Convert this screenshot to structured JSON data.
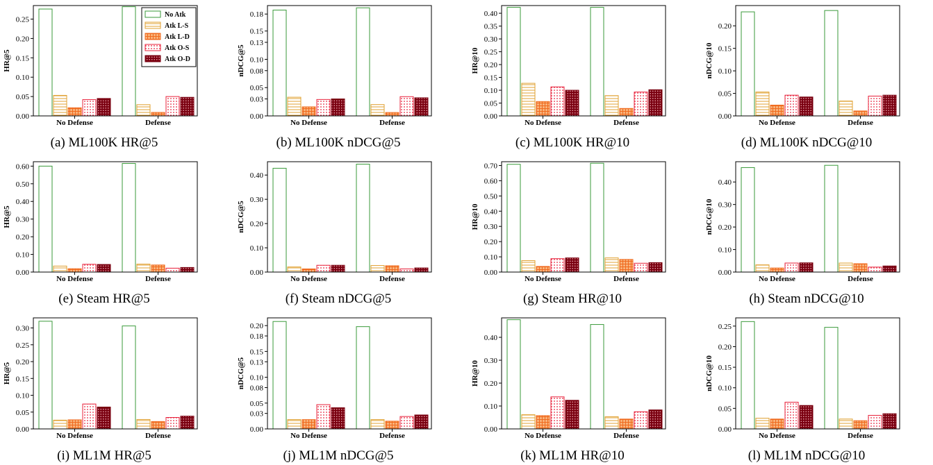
{
  "legend": {
    "entries": [
      "No Atk",
      "Atk L-S",
      "Atk L-D",
      "Atk O-S",
      "Atk O-D"
    ],
    "placement": "upper-right of panel (a)"
  },
  "series_style": [
    {
      "name": "No Atk",
      "edge": "#3a9a3a",
      "fill": "#ffffff",
      "pattern": "none"
    },
    {
      "name": "Atk L-S",
      "edge": "#e0a030",
      "fill": "#ffffff",
      "pattern": "horizontal-lines"
    },
    {
      "name": "Atk L-D",
      "edge": "#f06a1e",
      "fill": "#f8b27a",
      "pattern": "grid"
    },
    {
      "name": "Atk O-S",
      "edge": "#e8203a",
      "fill": "#ffe0e0",
      "pattern": "dots"
    },
    {
      "name": "Atk O-D",
      "edge": "#7a0010",
      "fill": "#a01a2a",
      "pattern": "dense-dots"
    }
  ],
  "chart_data": [
    {
      "type": "bar",
      "caption": "(a) ML100K HR@5",
      "ylabel": "HR@5",
      "categories": [
        "No Defense",
        "Defense"
      ],
      "ylim": [
        0,
        0.285
      ],
      "yticks": [
        "0.00",
        "0.05",
        "0.10",
        "0.15",
        "0.20",
        "0.25"
      ],
      "series": [
        {
          "name": "No Atk",
          "values": [
            0.276,
            0.282
          ]
        },
        {
          "name": "Atk L-S",
          "values": [
            0.053,
            0.029
          ]
        },
        {
          "name": "Atk L-D",
          "values": [
            0.021,
            0.009
          ]
        },
        {
          "name": "Atk O-S",
          "values": [
            0.042,
            0.05
          ]
        },
        {
          "name": "Atk O-D",
          "values": [
            0.045,
            0.048
          ]
        }
      ]
    },
    {
      "type": "bar",
      "caption": "(b) ML100K nDCG@5",
      "ylabel": "nDCG@5",
      "categories": [
        "No Defense",
        "Defense"
      ],
      "ylim": [
        0,
        0.195
      ],
      "yticks": [
        "0.00",
        "0.03",
        "0.05",
        "0.08",
        "0.10",
        "0.13",
        "0.15",
        "0.18"
      ],
      "series": [
        {
          "name": "No Atk",
          "values": [
            0.187,
            0.191
          ]
        },
        {
          "name": "Atk L-S",
          "values": [
            0.033,
            0.02
          ]
        },
        {
          "name": "Atk L-D",
          "values": [
            0.016,
            0.006
          ]
        },
        {
          "name": "Atk O-S",
          "values": [
            0.029,
            0.034
          ]
        },
        {
          "name": "Atk O-D",
          "values": [
            0.03,
            0.032
          ]
        }
      ]
    },
    {
      "type": "bar",
      "caption": "(c) ML100K HR@10",
      "ylabel": "HR@10",
      "categories": [
        "No Defense",
        "Defense"
      ],
      "ylim": [
        0,
        0.43
      ],
      "yticks": [
        "0.00",
        "0.05",
        "0.10",
        "0.15",
        "0.20",
        "0.25",
        "0.30",
        "0.35",
        "0.40"
      ],
      "series": [
        {
          "name": "No Atk",
          "values": [
            0.423,
            0.423
          ]
        },
        {
          "name": "Atk L-S",
          "values": [
            0.127,
            0.079
          ]
        },
        {
          "name": "Atk L-D",
          "values": [
            0.056,
            0.029
          ]
        },
        {
          "name": "Atk O-S",
          "values": [
            0.113,
            0.093
          ]
        },
        {
          "name": "Atk O-D",
          "values": [
            0.1,
            0.102
          ]
        }
      ]
    },
    {
      "type": "bar",
      "caption": "(d) ML100K nDCG@10",
      "ylabel": "nDCG@10",
      "categories": [
        "No Defense",
        "Defense"
      ],
      "ylim": [
        0,
        0.245
      ],
      "yticks": [
        "0.00",
        "0.05",
        "0.10",
        "0.15",
        "0.20"
      ],
      "series": [
        {
          "name": "No Atk",
          "values": [
            0.231,
            0.234
          ]
        },
        {
          "name": "Atk L-S",
          "values": [
            0.053,
            0.033
          ]
        },
        {
          "name": "Atk L-D",
          "values": [
            0.024,
            0.011
          ]
        },
        {
          "name": "Atk O-S",
          "values": [
            0.046,
            0.044
          ]
        },
        {
          "name": "Atk O-D",
          "values": [
            0.042,
            0.046
          ]
        }
      ]
    },
    {
      "type": "bar",
      "caption": "(e) Steam HR@5",
      "ylabel": "HR@5",
      "categories": [
        "No Defense",
        "Defense"
      ],
      "ylim": [
        0,
        0.625
      ],
      "yticks": [
        "0.00",
        "0.10",
        "0.20",
        "0.30",
        "0.40",
        "0.50",
        "0.60"
      ],
      "series": [
        {
          "name": "No Atk",
          "values": [
            0.6,
            0.615
          ]
        },
        {
          "name": "Atk L-S",
          "values": [
            0.034,
            0.045
          ]
        },
        {
          "name": "Atk L-D",
          "values": [
            0.019,
            0.04
          ]
        },
        {
          "name": "Atk O-S",
          "values": [
            0.044,
            0.022
          ]
        },
        {
          "name": "Atk O-D",
          "values": [
            0.043,
            0.026
          ]
        }
      ]
    },
    {
      "type": "bar",
      "caption": "(f) Steam nDCG@5",
      "ylabel": "nDCG@5",
      "categories": [
        "No Defense",
        "Defense"
      ],
      "ylim": [
        0,
        0.455
      ],
      "yticks": [
        "0.00",
        "0.10",
        "0.20",
        "0.30",
        "0.40"
      ],
      "series": [
        {
          "name": "No Atk",
          "values": [
            0.428,
            0.445
          ]
        },
        {
          "name": "Atk L-S",
          "values": [
            0.021,
            0.027
          ]
        },
        {
          "name": "Atk L-D",
          "values": [
            0.013,
            0.026
          ]
        },
        {
          "name": "Atk O-S",
          "values": [
            0.028,
            0.013
          ]
        },
        {
          "name": "Atk O-D",
          "values": [
            0.028,
            0.017
          ]
        }
      ]
    },
    {
      "type": "bar",
      "caption": "(g) Steam HR@10",
      "ylabel": "HR@10",
      "categories": [
        "No Defense",
        "Defense"
      ],
      "ylim": [
        0,
        0.725
      ],
      "yticks": [
        "0.00",
        "0.10",
        "0.20",
        "0.30",
        "0.40",
        "0.50",
        "0.60",
        "0.70"
      ],
      "series": [
        {
          "name": "No Atk",
          "values": [
            0.708,
            0.715
          ]
        },
        {
          "name": "Atk L-S",
          "values": [
            0.075,
            0.093
          ]
        },
        {
          "name": "Atk L-D",
          "values": [
            0.037,
            0.083
          ]
        },
        {
          "name": "Atk O-S",
          "values": [
            0.088,
            0.058
          ]
        },
        {
          "name": "Atk O-D",
          "values": [
            0.093,
            0.062
          ]
        }
      ]
    },
    {
      "type": "bar",
      "caption": "(h) Steam nDCG@10",
      "ylabel": "nDCG@10",
      "categories": [
        "No Defense",
        "Defense"
      ],
      "ylim": [
        0,
        0.49
      ],
      "yticks": [
        "0.00",
        "0.10",
        "0.20",
        "0.30",
        "0.40"
      ],
      "series": [
        {
          "name": "No Atk",
          "values": [
            0.464,
            0.474
          ]
        },
        {
          "name": "Atk L-S",
          "values": [
            0.032,
            0.04
          ]
        },
        {
          "name": "Atk L-D",
          "values": [
            0.018,
            0.037
          ]
        },
        {
          "name": "Atk O-S",
          "values": [
            0.04,
            0.022
          ]
        },
        {
          "name": "Atk O-D",
          "values": [
            0.041,
            0.027
          ]
        }
      ]
    },
    {
      "type": "bar",
      "caption": "(i) ML1M HR@5",
      "ylabel": "HR@5",
      "categories": [
        "No Defense",
        "Defense"
      ],
      "ylim": [
        0,
        0.33
      ],
      "yticks": [
        "0.00",
        "0.05",
        "0.10",
        "0.15",
        "0.20",
        "0.25",
        "0.30"
      ],
      "series": [
        {
          "name": "No Atk",
          "values": [
            0.32,
            0.306
          ]
        },
        {
          "name": "Atk L-S",
          "values": [
            0.026,
            0.028
          ]
        },
        {
          "name": "Atk L-D",
          "values": [
            0.027,
            0.022
          ]
        },
        {
          "name": "Atk O-S",
          "values": [
            0.074,
            0.034
          ]
        },
        {
          "name": "Atk O-D",
          "values": [
            0.065,
            0.038
          ]
        }
      ]
    },
    {
      "type": "bar",
      "caption": "(j) ML1M nDCG@5",
      "ylabel": "nDCG@5",
      "categories": [
        "No Defense",
        "Defense"
      ],
      "ylim": [
        0,
        0.215
      ],
      "yticks": [
        "0.00",
        "0.03",
        "0.05",
        "0.08",
        "0.10",
        "0.13",
        "0.15",
        "0.18",
        "0.20"
      ],
      "series": [
        {
          "name": "No Atk",
          "values": [
            0.208,
            0.198
          ]
        },
        {
          "name": "Atk L-S",
          "values": [
            0.018,
            0.018
          ]
        },
        {
          "name": "Atk L-D",
          "values": [
            0.018,
            0.015
          ]
        },
        {
          "name": "Atk O-S",
          "values": [
            0.047,
            0.024
          ]
        },
        {
          "name": "Atk O-D",
          "values": [
            0.041,
            0.027
          ]
        }
      ]
    },
    {
      "type": "bar",
      "caption": "(k) ML1M HR@10",
      "ylabel": "HR@10",
      "categories": [
        "No Defense",
        "Defense"
      ],
      "ylim": [
        0,
        0.485
      ],
      "yticks": [
        "0.00",
        "0.10",
        "0.20",
        "0.30",
        "0.40"
      ],
      "series": [
        {
          "name": "No Atk",
          "values": [
            0.477,
            0.456
          ]
        },
        {
          "name": "Atk L-S",
          "values": [
            0.062,
            0.053
          ]
        },
        {
          "name": "Atk L-D",
          "values": [
            0.058,
            0.043
          ]
        },
        {
          "name": "Atk O-S",
          "values": [
            0.14,
            0.075
          ]
        },
        {
          "name": "Atk O-D",
          "values": [
            0.125,
            0.083
          ]
        }
      ]
    },
    {
      "type": "bar",
      "caption": "(l) ML1M nDCG@10",
      "ylabel": "nDCG@10",
      "categories": [
        "No Defense",
        "Defense"
      ],
      "ylim": [
        0,
        0.27
      ],
      "yticks": [
        "0.00",
        "0.05",
        "0.10",
        "0.15",
        "0.20",
        "0.25"
      ],
      "series": [
        {
          "name": "No Atk",
          "values": [
            0.261,
            0.247
          ]
        },
        {
          "name": "Atk L-S",
          "values": [
            0.026,
            0.024
          ]
        },
        {
          "name": "Atk L-D",
          "values": [
            0.024,
            0.02
          ]
        },
        {
          "name": "Atk O-S",
          "values": [
            0.065,
            0.033
          ]
        },
        {
          "name": "Atk O-D",
          "values": [
            0.057,
            0.037
          ]
        }
      ]
    }
  ]
}
